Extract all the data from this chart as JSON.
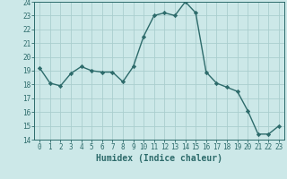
{
  "x": [
    0,
    1,
    2,
    3,
    4,
    5,
    6,
    7,
    8,
    9,
    10,
    11,
    12,
    13,
    14,
    15,
    16,
    17,
    18,
    19,
    20,
    21,
    22,
    23
  ],
  "y": [
    19.2,
    18.1,
    17.9,
    18.8,
    19.3,
    19.0,
    18.9,
    18.9,
    18.2,
    19.3,
    21.5,
    23.0,
    23.2,
    23.0,
    24.0,
    23.2,
    18.9,
    18.1,
    17.8,
    17.5,
    16.1,
    14.4,
    14.4,
    15.0
  ],
  "line_color": "#2d6b6b",
  "marker": "D",
  "markersize": 2.2,
  "linewidth": 1.0,
  "bg_color": "#cce8e8",
  "grid_color": "#aacece",
  "xlabel": "Humidex (Indice chaleur)",
  "xlim": [
    -0.5,
    23.5
  ],
  "ylim": [
    14,
    24
  ],
  "yticks": [
    14,
    15,
    16,
    17,
    18,
    19,
    20,
    21,
    22,
    23,
    24
  ],
  "xticks": [
    0,
    1,
    2,
    3,
    4,
    5,
    6,
    7,
    8,
    9,
    10,
    11,
    12,
    13,
    14,
    15,
    16,
    17,
    18,
    19,
    20,
    21,
    22,
    23
  ],
  "tick_label_fontsize": 5.5,
  "xlabel_fontsize": 7.0
}
